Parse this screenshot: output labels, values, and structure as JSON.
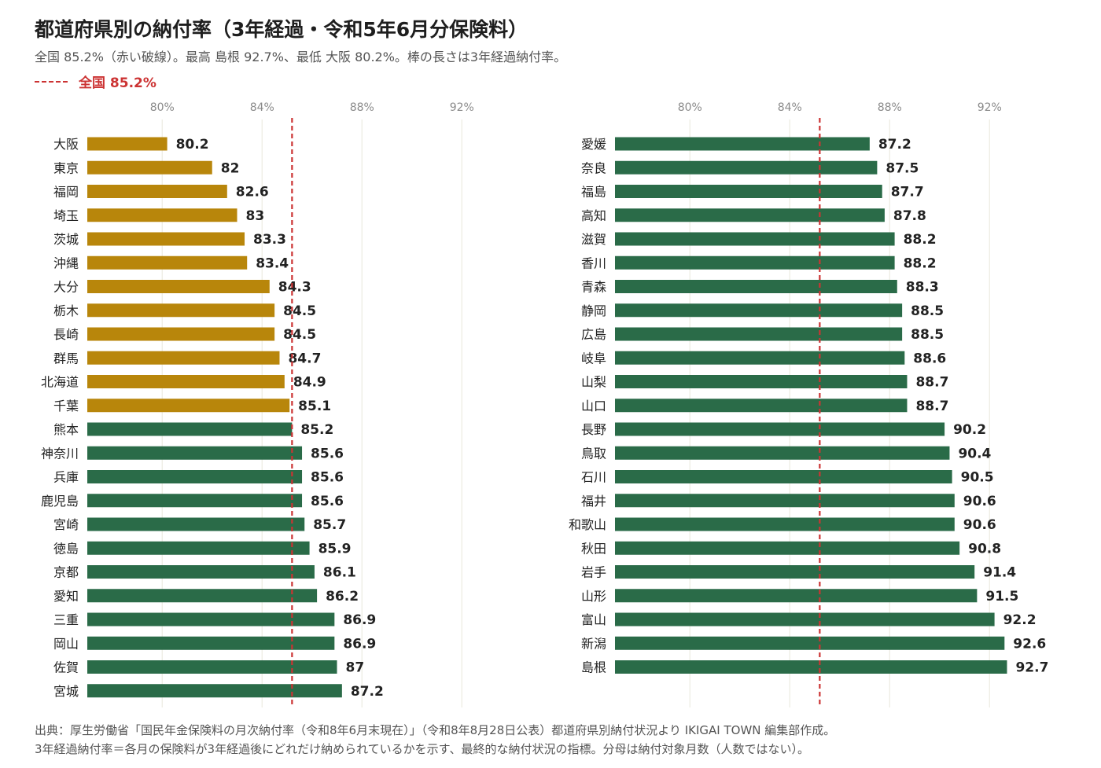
{
  "header": {
    "title": "都道府県別の納付率（3年経過・令和5年6月分保険料）",
    "subtitle": "全国 85.2%（赤い破線）。最高 島根 92.7%、最低 大阪 80.2%。棒の長さは3年経過納付率。",
    "legend_label": "全国 85.2%"
  },
  "colors": {
    "below_national": "#b8860b",
    "above_national": "#2a6b48",
    "reference_line": "#cc3333",
    "grid": "#ecebe2"
  },
  "chart_data": [
    {
      "type": "bar",
      "orientation": "horizontal",
      "xlim": [
        77,
        95
      ],
      "xticks": [
        80,
        84,
        88,
        92
      ],
      "xtick_labels": [
        "80%",
        "84%",
        "88%",
        "92%"
      ],
      "reference": {
        "value": 85.2,
        "label": "全国 85.2%"
      },
      "categories": [
        "大阪",
        "東京",
        "福岡",
        "埼玉",
        "茨城",
        "沖縄",
        "大分",
        "栃木",
        "長崎",
        "群馬",
        "北海道",
        "千葉",
        "熊本",
        "神奈川",
        "兵庫",
        "鹿児島",
        "宮崎",
        "徳島",
        "京都",
        "愛知",
        "三重",
        "岡山",
        "佐賀",
        "宮城"
      ],
      "values": [
        80.2,
        82,
        82.6,
        83,
        83.3,
        83.4,
        84.3,
        84.5,
        84.5,
        84.7,
        84.9,
        85.1,
        85.2,
        85.6,
        85.6,
        85.6,
        85.7,
        85.9,
        86.1,
        86.2,
        86.9,
        86.9,
        87,
        87.2
      ],
      "value_labels": [
        "80.2",
        "82",
        "82.6",
        "83",
        "83.3",
        "83.4",
        "84.3",
        "84.5",
        "84.5",
        "84.7",
        "84.9",
        "85.1",
        "85.2",
        "85.6",
        "85.6",
        "85.6",
        "85.7",
        "85.9",
        "86.1",
        "86.2",
        "86.9",
        "86.9",
        "87",
        "87.2"
      ],
      "grid": true
    },
    {
      "type": "bar",
      "orientation": "horizontal",
      "xlim": [
        77,
        95
      ],
      "xticks": [
        80,
        84,
        88,
        92
      ],
      "xtick_labels": [
        "80%",
        "84%",
        "88%",
        "92%"
      ],
      "reference": {
        "value": 85.2,
        "label": "全国 85.2%"
      },
      "categories": [
        "愛媛",
        "奈良",
        "福島",
        "高知",
        "滋賀",
        "香川",
        "青森",
        "静岡",
        "広島",
        "岐阜",
        "山梨",
        "山口",
        "長野",
        "鳥取",
        "石川",
        "福井",
        "和歌山",
        "秋田",
        "岩手",
        "山形",
        "富山",
        "新潟",
        "島根"
      ],
      "values": [
        87.2,
        87.5,
        87.7,
        87.8,
        88.2,
        88.2,
        88.3,
        88.5,
        88.5,
        88.6,
        88.7,
        88.7,
        90.2,
        90.4,
        90.5,
        90.6,
        90.6,
        90.8,
        91.4,
        91.5,
        92.2,
        92.6,
        92.7
      ],
      "value_labels": [
        "87.2",
        "87.5",
        "87.7",
        "87.8",
        "88.2",
        "88.2",
        "88.3",
        "88.5",
        "88.5",
        "88.6",
        "88.7",
        "88.7",
        "90.2",
        "90.4",
        "90.5",
        "90.6",
        "90.6",
        "90.8",
        "91.4",
        "91.5",
        "92.2",
        "92.6",
        "92.7"
      ],
      "grid": true
    }
  ],
  "footer": {
    "line1": "出典：厚生労働省「国民年金保険料の月次納付率（令和8年6月末現在）」（令和8年8月28日公表）都道府県別納付状況より IKIGAI TOWN 編集部作成。",
    "line2": "3年経過納付率＝各月の保険料が3年経過後にどれだけ納められているかを示す、最終的な納付状況の指標。分母は納付対象月数（人数ではない）。"
  }
}
